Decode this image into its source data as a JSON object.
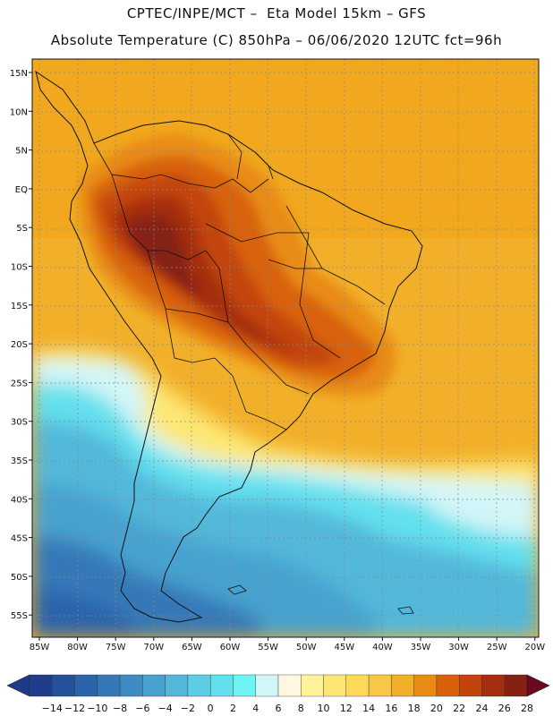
{
  "header": {
    "title_line1": "CPTEC/INPE/MCT –  Eta Model 15km – GFS",
    "title_line2": "Absolute Temperature (C) 850hPa – 06/06/2020 12UTC fct=96h"
  },
  "map": {
    "lat_labels": [
      "15N",
      "10N",
      "5N",
      "EQ",
      "5S",
      "10S",
      "15S",
      "20S",
      "25S",
      "30S",
      "35S",
      "40S",
      "45S",
      "50S",
      "55S"
    ],
    "lon_labels": [
      "85W",
      "80W",
      "75W",
      "70W",
      "65W",
      "60W",
      "55W",
      "50W",
      "45W",
      "40W",
      "35W",
      "30W",
      "25W",
      "20W"
    ]
  },
  "colorbar": {
    "labels": [
      "-14",
      "-12",
      "-10",
      "-8",
      "-6",
      "-4",
      "-2",
      "0",
      "2",
      "4",
      "6",
      "8",
      "10",
      "12",
      "14",
      "16",
      "18",
      "20",
      "22",
      "24",
      "26",
      "28"
    ],
    "low_color": "#1f3a8a",
    "high_color": "#6b0a1e",
    "colors": [
      "#1f3d8c",
      "#25509c",
      "#2b64ab",
      "#3478b8",
      "#3d8cc4",
      "#47a2cf",
      "#52b8da",
      "#5dcde6",
      "#63e0ee",
      "#6ff4f6",
      "#d3f6f8",
      "#fff7e0",
      "#fff39a",
      "#fde774",
      "#fcd95a",
      "#f8c748",
      "#f2b02a",
      "#e98b14",
      "#d8620c",
      "#c2440c",
      "#a52e0e",
      "#852012"
    ]
  }
}
